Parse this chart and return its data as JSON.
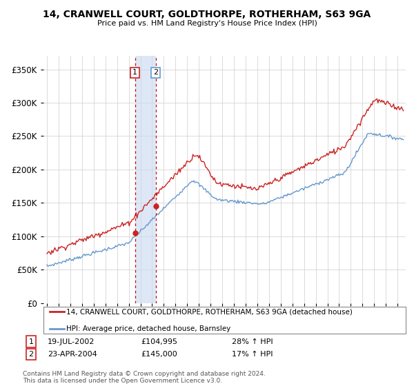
{
  "title": "14, CRANWELL COURT, GOLDTHORPE, ROTHERHAM, S63 9GA",
  "subtitle": "Price paid vs. HM Land Registry's House Price Index (HPI)",
  "legend_line1": "14, CRANWELL COURT, GOLDTHORPE, ROTHERHAM, S63 9GA (detached house)",
  "legend_line2": "HPI: Average price, detached house, Barnsley",
  "footnote": "Contains HM Land Registry data © Crown copyright and database right 2024.\nThis data is licensed under the Open Government Licence v3.0.",
  "transaction1_date": "19-JUL-2002",
  "transaction1_price": "£104,995",
  "transaction1_hpi": "28% ↑ HPI",
  "transaction2_date": "23-APR-2004",
  "transaction2_price": "£145,000",
  "transaction2_hpi": "17% ↑ HPI",
  "hpi_color": "#6699cc",
  "price_color": "#cc2222",
  "vline_color": "#cc0000",
  "ylim": [
    0,
    370000
  ],
  "yticks": [
    0,
    50000,
    100000,
    150000,
    200000,
    250000,
    300000,
    350000
  ],
  "background_color": "#ffffff",
  "grid_color": "#cccccc",
  "t1": 2002.54,
  "t2": 2004.3,
  "p1": 104995,
  "p2": 145000,
  "xstart": 1995,
  "xend": 2025
}
